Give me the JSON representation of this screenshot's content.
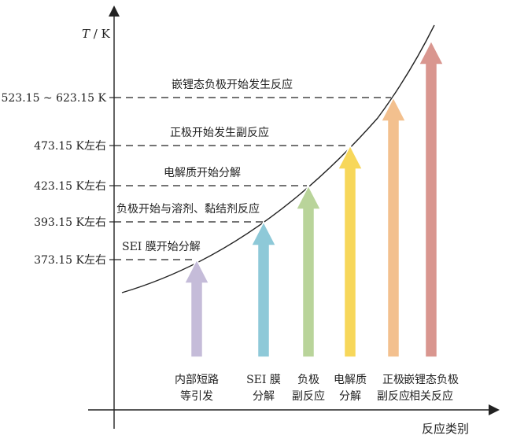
{
  "y_axis": {
    "title": "T / K"
  },
  "x_axis": {
    "title": "反应类别"
  },
  "levels": [
    {
      "tick": "373.15 K左右",
      "annotation": "SEI 膜开始分解"
    },
    {
      "tick": "393.15 K左右",
      "annotation": "负极开始与溶剂、黏结剂反应"
    },
    {
      "tick": "423.15 K左右",
      "annotation": "电解质开始分解"
    },
    {
      "tick": "473.15 K左右",
      "annotation": "正极开始发生副反应"
    },
    {
      "tick": "523.15 ~ 623.15 K",
      "annotation": "嵌锂态负极开始发生反应"
    }
  ],
  "categories": [
    {
      "line1": "内部短路",
      "line2": "等引发",
      "color": "#c5bcd9"
    },
    {
      "line1": "SEI 膜",
      "line2": "分解",
      "color": "#8ec9d8"
    },
    {
      "line1": "负极",
      "line2": "副反应",
      "color": "#b9d49a"
    },
    {
      "line1": "电解质",
      "line2": "分解",
      "color": "#f7d75a"
    },
    {
      "line1": "正极",
      "line2": "副反应",
      "color": "#f3c08e"
    },
    {
      "line1": "嵌锂态负极",
      "line2": "相关反应",
      "color": "#d9968f"
    }
  ]
}
